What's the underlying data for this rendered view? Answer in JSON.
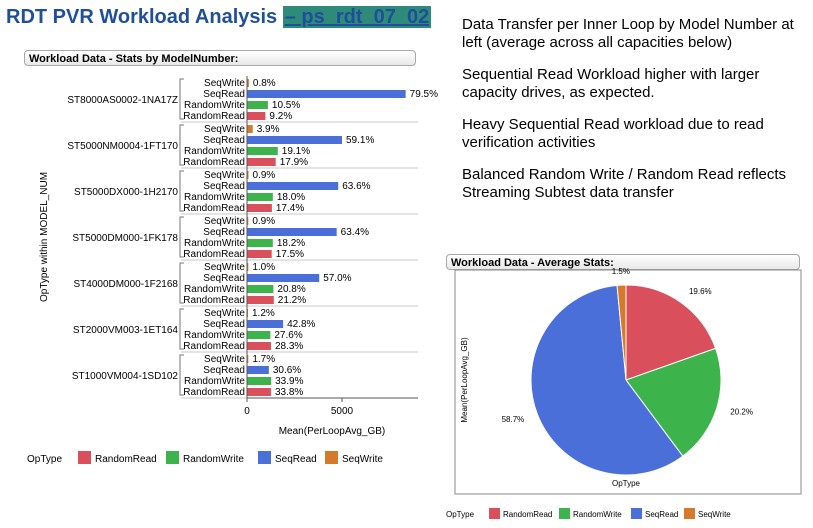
{
  "header": {
    "title": "RDT PVR Workload Analysis",
    "title_suffix": "– ps_rdt_07_02"
  },
  "notes": [
    "Data Transfer per Inner Loop by Model Number at left (average across all capacities below)",
    "Sequential Read Workload higher with larger capacity drives, as expected.",
    "Heavy Sequential Read workload due to read verification activities",
    "Balanced Random Write / Random Read reflects Streaming Subtest data transfer"
  ],
  "colors": {
    "RandomRead": "#d94f5c",
    "RandomWrite": "#3cb44b",
    "SeqRead": "#4a6fd8",
    "SeqWrite": "#d47a2a",
    "title": "#1f4e9b",
    "title_highlight": "#2e8b7a"
  },
  "chart_data": [
    {
      "type": "bar",
      "orientation": "horizontal",
      "panel_title": "Workload Data - Stats by ModelNumber:",
      "ylabel": "OpType within MODEL_NUM",
      "xlabel": "Mean(PerLoopAvg_GB)",
      "xlim": [
        0,
        9000
      ],
      "xticks": [
        0,
        5000
      ],
      "legend_title": "OpType",
      "legend": [
        "RandomRead",
        "RandomWrite",
        "SeqRead",
        "SeqWrite"
      ],
      "optypes": [
        "SeqWrite",
        "SeqRead",
        "RandomWrite",
        "RandomRead"
      ],
      "groups": [
        {
          "model": "ST8000AS0002-1NA17Z",
          "values": [
            100,
            8350,
            1100,
            970
          ],
          "labels": [
            "0.8%",
            "79.5%",
            "10.5%",
            "9.2%"
          ]
        },
        {
          "model": "ST5000NM0004-1FT170",
          "values": [
            300,
            5000,
            1620,
            1510
          ],
          "labels": [
            "3.9%",
            "59.1%",
            "19.1%",
            "17.9%"
          ]
        },
        {
          "model": "ST5000DX000-1H2170",
          "values": [
            80,
            4800,
            1360,
            1310
          ],
          "labels": [
            "0.9%",
            "63.6%",
            "18.0%",
            "17.4%"
          ]
        },
        {
          "model": "ST5000DM000-1FK178",
          "values": [
            70,
            4720,
            1360,
            1300
          ],
          "labels": [
            "0.9%",
            "63.4%",
            "18.2%",
            "17.5%"
          ]
        },
        {
          "model": "ST4000DM000-1F2168",
          "values": [
            70,
            3800,
            1390,
            1410
          ],
          "labels": [
            "1.0%",
            "57.0%",
            "20.8%",
            "21.2%"
          ]
        },
        {
          "model": "ST2000VM003-1ET164",
          "values": [
            50,
            1900,
            1230,
            1260
          ],
          "labels": [
            "1.2%",
            "42.8%",
            "27.6%",
            "28.3%"
          ]
        },
        {
          "model": "ST1000VM004-1SD102",
          "values": [
            70,
            1150,
            1270,
            1260
          ],
          "labels": [
            "1.7%",
            "30.6%",
            "33.9%",
            "33.8%"
          ]
        }
      ]
    },
    {
      "type": "pie",
      "panel_title": "Workload Data - Average Stats:",
      "ylabel": "Mean(PerLoopAvg_GB)",
      "xlabel": "OpType",
      "legend_title": "OpType",
      "legend": [
        "RandomRead",
        "RandomWrite",
        "SeqRead",
        "SeqWrite"
      ],
      "slices": [
        {
          "name": "RandomRead",
          "value": 19.6,
          "label": "19.6%"
        },
        {
          "name": "RandomWrite",
          "value": 20.2,
          "label": "20.2%"
        },
        {
          "name": "SeqRead",
          "value": 58.7,
          "label": "58.7%"
        },
        {
          "name": "SeqWrite",
          "value": 1.5,
          "label": "1.5%"
        }
      ]
    }
  ]
}
